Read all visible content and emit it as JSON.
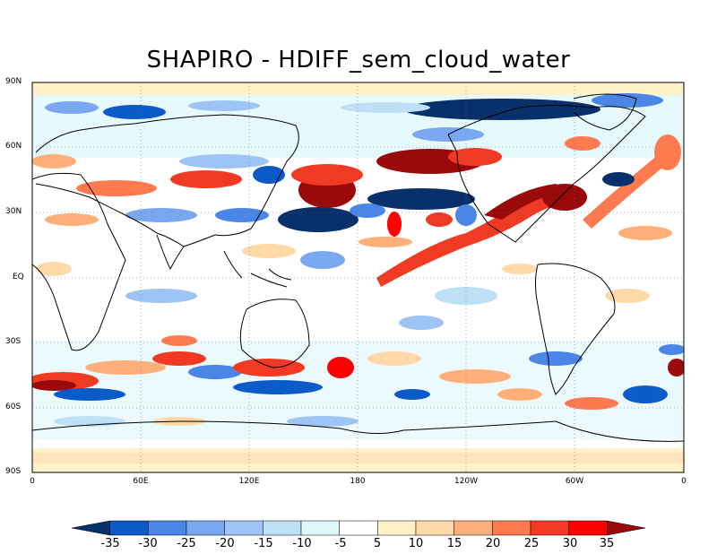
{
  "title": "SHAPIRO - HDIFF_sem_cloud_water",
  "map": {
    "lat_labels": [
      "90N",
      "60N",
      "30N",
      "EQ",
      "30S",
      "60S",
      "90S"
    ],
    "lon_labels": [
      "0",
      "60E",
      "120E",
      "180",
      "120W",
      "60W",
      "0"
    ]
  },
  "colorbar": {
    "labels": [
      "-35",
      "-30",
      "-25",
      "-20",
      "-15",
      "-10",
      "-5",
      "5",
      "10",
      "15",
      "20",
      "25",
      "30",
      "35"
    ],
    "colors": [
      "#08306b",
      "#0a5bc8",
      "#4a86e8",
      "#7aa8f0",
      "#9dc4f5",
      "#bee0f7",
      "#e0f7fb",
      "#ffffff",
      "#fff1c8",
      "#ffd9a8",
      "#ffb07a",
      "#ff7a4f",
      "#f03a24",
      "#ff0000",
      "#9b0a0a"
    ]
  }
}
